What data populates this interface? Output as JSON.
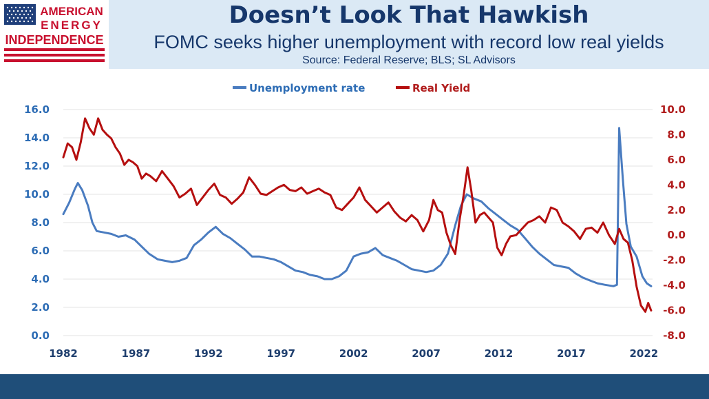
{
  "logo": {
    "line1": "AMERICAN",
    "line2": "ENERGY",
    "line3": "INDEPENDENCE"
  },
  "header": {
    "title": "Doesn’t Look That Hawkish",
    "subtitle": "FOMC seeks higher unemployment with record low real yields",
    "source": "Source: Federal Reserve; BLS; SL Advisors"
  },
  "colors": {
    "unemployment": "#4a7cc0",
    "real_yield": "#b50f0f",
    "left_axis": "#2e6db5",
    "right_axis": "#b11d1d",
    "x_axis": "#1f3f6e",
    "header_band": "#dbe9f5",
    "title_text": "#16376b",
    "footer": "#1f4e79"
  },
  "chart_data": {
    "type": "line",
    "title": "",
    "xlabel": "",
    "ylabel": "",
    "xlim": [
      1982,
      2022.6
    ],
    "x_ticks": [
      "1982",
      "1987",
      "1992",
      "1997",
      "2002",
      "2007",
      "2012",
      "2017",
      "2022"
    ],
    "x_tick_values": [
      1982,
      1987,
      1992,
      1997,
      2002,
      2007,
      2012,
      2017,
      2022
    ],
    "ylim_left": [
      0,
      16
    ],
    "y_ticks_left": [
      "0.0",
      "2.0",
      "4.0",
      "6.0",
      "8.0",
      "10.0",
      "12.0",
      "14.0",
      "16.0"
    ],
    "y_tick_values_left": [
      0,
      2,
      4,
      6,
      8,
      10,
      12,
      14,
      16
    ],
    "ylim_right": [
      -8,
      10
    ],
    "y_ticks_right": [
      "-8.0",
      "-6.0",
      "-4.0",
      "-2.0",
      "0.0",
      "2.0",
      "4.0",
      "6.0",
      "8.0",
      "10.0"
    ],
    "y_tick_values_right": [
      -8,
      -6,
      -4,
      -2,
      0,
      2,
      4,
      6,
      8,
      10
    ],
    "grid": "horizontal",
    "legend_position": "top-center",
    "series": [
      {
        "name": "Unemployment rate",
        "axis": "left",
        "points": [
          [
            1982.0,
            8.6
          ],
          [
            1982.4,
            9.4
          ],
          [
            1982.8,
            10.4
          ],
          [
            1983.0,
            10.8
          ],
          [
            1983.3,
            10.3
          ],
          [
            1983.7,
            9.2
          ],
          [
            1984.0,
            8.0
          ],
          [
            1984.3,
            7.4
          ],
          [
            1984.8,
            7.3
          ],
          [
            1985.3,
            7.2
          ],
          [
            1985.8,
            7.0
          ],
          [
            1986.3,
            7.1
          ],
          [
            1986.9,
            6.8
          ],
          [
            1987.4,
            6.3
          ],
          [
            1987.9,
            5.8
          ],
          [
            1988.5,
            5.4
          ],
          [
            1989.0,
            5.3
          ],
          [
            1989.5,
            5.2
          ],
          [
            1990.0,
            5.3
          ],
          [
            1990.5,
            5.5
          ],
          [
            1991.0,
            6.4
          ],
          [
            1991.5,
            6.8
          ],
          [
            1992.0,
            7.3
          ],
          [
            1992.5,
            7.7
          ],
          [
            1993.0,
            7.2
          ],
          [
            1993.5,
            6.9
          ],
          [
            1994.0,
            6.5
          ],
          [
            1994.5,
            6.1
          ],
          [
            1995.0,
            5.6
          ],
          [
            1995.5,
            5.6
          ],
          [
            1996.0,
            5.5
          ],
          [
            1996.5,
            5.4
          ],
          [
            1997.0,
            5.2
          ],
          [
            1997.5,
            4.9
          ],
          [
            1998.0,
            4.6
          ],
          [
            1998.5,
            4.5
          ],
          [
            1999.0,
            4.3
          ],
          [
            1999.5,
            4.2
          ],
          [
            2000.0,
            4.0
          ],
          [
            2000.5,
            4.0
          ],
          [
            2001.0,
            4.2
          ],
          [
            2001.5,
            4.6
          ],
          [
            2002.0,
            5.6
          ],
          [
            2002.5,
            5.8
          ],
          [
            2003.0,
            5.9
          ],
          [
            2003.5,
            6.2
          ],
          [
            2004.0,
            5.7
          ],
          [
            2004.5,
            5.5
          ],
          [
            2005.0,
            5.3
          ],
          [
            2005.5,
            5.0
          ],
          [
            2006.0,
            4.7
          ],
          [
            2006.5,
            4.6
          ],
          [
            2007.0,
            4.5
          ],
          [
            2007.5,
            4.6
          ],
          [
            2008.0,
            5.0
          ],
          [
            2008.5,
            5.8
          ],
          [
            2009.0,
            7.8
          ],
          [
            2009.4,
            9.2
          ],
          [
            2009.8,
            10.0
          ],
          [
            2010.3,
            9.7
          ],
          [
            2010.8,
            9.5
          ],
          [
            2011.3,
            9.0
          ],
          [
            2011.8,
            8.6
          ],
          [
            2012.3,
            8.2
          ],
          [
            2012.8,
            7.8
          ],
          [
            2013.3,
            7.5
          ],
          [
            2013.8,
            6.9
          ],
          [
            2014.3,
            6.3
          ],
          [
            2014.8,
            5.8
          ],
          [
            2015.3,
            5.4
          ],
          [
            2015.8,
            5.0
          ],
          [
            2016.3,
            4.9
          ],
          [
            2016.8,
            4.8
          ],
          [
            2017.3,
            4.4
          ],
          [
            2017.8,
            4.1
          ],
          [
            2018.3,
            3.9
          ],
          [
            2018.8,
            3.7
          ],
          [
            2019.3,
            3.6
          ],
          [
            2019.9,
            3.5
          ],
          [
            2020.15,
            3.6
          ],
          [
            2020.3,
            14.7
          ],
          [
            2020.55,
            11.1
          ],
          [
            2020.8,
            7.9
          ],
          [
            2021.1,
            6.3
          ],
          [
            2021.5,
            5.6
          ],
          [
            2021.9,
            4.2
          ],
          [
            2022.2,
            3.7
          ],
          [
            2022.5,
            3.5
          ]
        ]
      },
      {
        "name": "Real Yield",
        "axis": "right",
        "points": [
          [
            1982.0,
            6.2
          ],
          [
            1982.3,
            7.3
          ],
          [
            1982.6,
            7.0
          ],
          [
            1982.9,
            6.0
          ],
          [
            1983.2,
            7.4
          ],
          [
            1983.5,
            9.3
          ],
          [
            1983.8,
            8.5
          ],
          [
            1984.1,
            8.0
          ],
          [
            1984.4,
            9.3
          ],
          [
            1984.7,
            8.4
          ],
          [
            1985.0,
            8.0
          ],
          [
            1985.3,
            7.7
          ],
          [
            1985.6,
            7.0
          ],
          [
            1985.9,
            6.5
          ],
          [
            1986.2,
            5.6
          ],
          [
            1986.5,
            6.0
          ],
          [
            1986.8,
            5.8
          ],
          [
            1987.1,
            5.5
          ],
          [
            1987.4,
            4.5
          ],
          [
            1987.7,
            4.9
          ],
          [
            1988.0,
            4.7
          ],
          [
            1988.4,
            4.3
          ],
          [
            1988.8,
            5.1
          ],
          [
            1989.2,
            4.5
          ],
          [
            1989.6,
            3.9
          ],
          [
            1990.0,
            3.0
          ],
          [
            1990.4,
            3.3
          ],
          [
            1990.8,
            3.7
          ],
          [
            1991.2,
            2.4
          ],
          [
            1991.6,
            3.0
          ],
          [
            1992.0,
            3.6
          ],
          [
            1992.4,
            4.1
          ],
          [
            1992.8,
            3.2
          ],
          [
            1993.2,
            3.0
          ],
          [
            1993.6,
            2.5
          ],
          [
            1994.0,
            2.9
          ],
          [
            1994.4,
            3.4
          ],
          [
            1994.8,
            4.6
          ],
          [
            1995.2,
            4.0
          ],
          [
            1995.6,
            3.3
          ],
          [
            1996.0,
            3.2
          ],
          [
            1996.4,
            3.5
          ],
          [
            1996.8,
            3.8
          ],
          [
            1997.2,
            4.0
          ],
          [
            1997.6,
            3.6
          ],
          [
            1998.0,
            3.5
          ],
          [
            1998.4,
            3.8
          ],
          [
            1998.8,
            3.3
          ],
          [
            1999.2,
            3.5
          ],
          [
            1999.6,
            3.7
          ],
          [
            2000.0,
            3.4
          ],
          [
            2000.4,
            3.2
          ],
          [
            2000.8,
            2.2
          ],
          [
            2001.2,
            2.0
          ],
          [
            2001.6,
            2.5
          ],
          [
            2002.0,
            3.0
          ],
          [
            2002.4,
            3.8
          ],
          [
            2002.8,
            2.8
          ],
          [
            2003.2,
            2.3
          ],
          [
            2003.6,
            1.8
          ],
          [
            2004.0,
            2.2
          ],
          [
            2004.4,
            2.6
          ],
          [
            2004.8,
            1.9
          ],
          [
            2005.2,
            1.4
          ],
          [
            2005.6,
            1.1
          ],
          [
            2006.0,
            1.6
          ],
          [
            2006.4,
            1.2
          ],
          [
            2006.8,
            0.3
          ],
          [
            2007.2,
            1.2
          ],
          [
            2007.5,
            2.8
          ],
          [
            2007.8,
            2.0
          ],
          [
            2008.1,
            1.8
          ],
          [
            2008.4,
            0.2
          ],
          [
            2008.7,
            -0.8
          ],
          [
            2009.0,
            -1.5
          ],
          [
            2009.3,
            1.2
          ],
          [
            2009.6,
            3.3
          ],
          [
            2009.85,
            5.4
          ],
          [
            2010.1,
            3.6
          ],
          [
            2010.4,
            1.0
          ],
          [
            2010.7,
            1.6
          ],
          [
            2011.0,
            1.8
          ],
          [
            2011.3,
            1.4
          ],
          [
            2011.6,
            1.0
          ],
          [
            2011.9,
            -1.0
          ],
          [
            2012.2,
            -1.6
          ],
          [
            2012.5,
            -0.7
          ],
          [
            2012.8,
            -0.1
          ],
          [
            2013.2,
            0.0
          ],
          [
            2013.6,
            0.5
          ],
          [
            2014.0,
            1.0
          ],
          [
            2014.4,
            1.2
          ],
          [
            2014.8,
            1.5
          ],
          [
            2015.2,
            1.0
          ],
          [
            2015.6,
            2.2
          ],
          [
            2016.0,
            2.0
          ],
          [
            2016.4,
            1.0
          ],
          [
            2016.8,
            0.7
          ],
          [
            2017.2,
            0.3
          ],
          [
            2017.6,
            -0.3
          ],
          [
            2018.0,
            0.5
          ],
          [
            2018.4,
            0.6
          ],
          [
            2018.8,
            0.2
          ],
          [
            2019.2,
            1.0
          ],
          [
            2019.6,
            0.0
          ],
          [
            2020.0,
            -0.7
          ],
          [
            2020.3,
            0.5
          ],
          [
            2020.6,
            -0.3
          ],
          [
            2020.9,
            -0.6
          ],
          [
            2021.2,
            -2.0
          ],
          [
            2021.5,
            -4.1
          ],
          [
            2021.8,
            -5.6
          ],
          [
            2022.1,
            -6.1
          ],
          [
            2022.3,
            -5.4
          ],
          [
            2022.5,
            -6.0
          ]
        ]
      }
    ]
  }
}
